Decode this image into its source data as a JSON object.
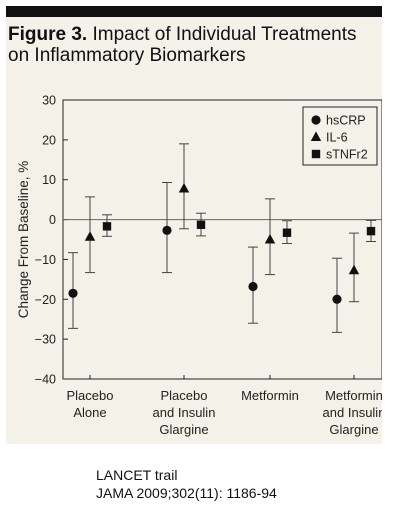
{
  "figure": {
    "title_bold": "Figure 3.",
    "title_line1": "Impact of Individual Treatments",
    "title_line2": "on Inflammatory Biomarkers"
  },
  "chart_data": {
    "type": "scatter",
    "ylabel": "Change From Baseline, %",
    "ylim": [
      -40,
      30
    ],
    "yticks": [
      30,
      20,
      10,
      0,
      -10,
      -20,
      -30,
      -40
    ],
    "ytick_labels": [
      "30",
      "20",
      "10",
      "0",
      "−10",
      "−20",
      "−30",
      "−40"
    ],
    "zero_line": true,
    "legend_position": "top-right",
    "categories": [
      [
        "Placebo",
        "Alone"
      ],
      [
        "Placebo",
        "and Insulin",
        "Glargine"
      ],
      [
        "Metformin"
      ],
      [
        "Metformin",
        "and Insulin",
        "Glargine"
      ]
    ],
    "series": [
      {
        "name": "hsCRP",
        "marker": "circle",
        "values": [
          -18.5,
          -2.7,
          -16.8,
          -20
        ],
        "lower": [
          -27.3,
          -13.3,
          -26,
          -28.3
        ],
        "upper": [
          -8.3,
          9.3,
          -6.9,
          -9.7
        ]
      },
      {
        "name": "IL-6",
        "marker": "triangle",
        "values": [
          -4.3,
          7.8,
          -5,
          -12.7
        ],
        "lower": [
          -13.3,
          -2.3,
          -13.8,
          -20.6
        ],
        "upper": [
          5.7,
          19,
          5.2,
          -3.4
        ]
      },
      {
        "name": "sTNFr2",
        "marker": "square",
        "values": [
          -1.7,
          -1.3,
          -3.3,
          -2.9
        ],
        "lower": [
          -4.2,
          -4.1,
          -6,
          -5.5
        ],
        "upper": [
          1.2,
          1.6,
          -0.3,
          -0.2
        ]
      }
    ]
  },
  "caption": {
    "line1": "LANCET trail",
    "line2": "JAMA 2009;302(11): 1186-94"
  }
}
